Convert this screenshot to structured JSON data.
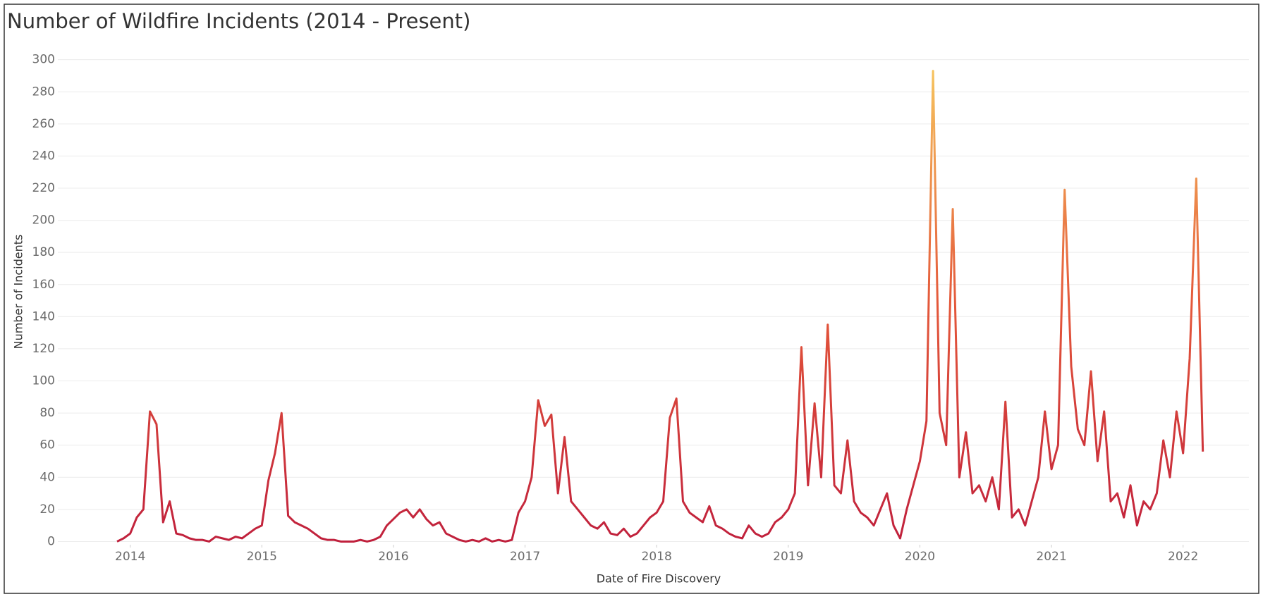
{
  "chart_data": {
    "type": "line",
    "title": "Number of Wildfire Incidents (2014 - Present)",
    "x_label": "Date of Fire Discovery",
    "y_label": "Number of Incidents",
    "x": [
      2013.9,
      2013.95,
      2014,
      2014.05,
      2014.1,
      2014.15,
      2014.2,
      2014.25,
      2014.3,
      2014.35,
      2014.4,
      2014.45,
      2014.5,
      2014.55,
      2014.6,
      2014.65,
      2014.7,
      2014.75,
      2014.8,
      2014.85,
      2014.9,
      2014.95,
      2015,
      2015.05,
      2015.1,
      2015.15,
      2015.2,
      2015.25,
      2015.3,
      2015.35,
      2015.4,
      2015.45,
      2015.5,
      2015.55,
      2015.6,
      2015.65,
      2015.7,
      2015.75,
      2015.8,
      2015.85,
      2015.9,
      2015.95,
      2016,
      2016.05,
      2016.1,
      2016.15,
      2016.2,
      2016.25,
      2016.3,
      2016.35,
      2016.4,
      2016.45,
      2016.5,
      2016.55,
      2016.6,
      2016.65,
      2016.7,
      2016.75,
      2016.8,
      2016.85,
      2016.9,
      2016.95,
      2017,
      2017.05,
      2017.1,
      2017.15,
      2017.2,
      2017.25,
      2017.3,
      2017.35,
      2017.4,
      2017.45,
      2017.5,
      2017.55,
      2017.6,
      2017.65,
      2017.7,
      2017.75,
      2017.8,
      2017.85,
      2017.9,
      2017.95,
      2018,
      2018.05,
      2018.1,
      2018.15,
      2018.2,
      2018.25,
      2018.3,
      2018.35,
      2018.4,
      2018.45,
      2018.5,
      2018.55,
      2018.6,
      2018.65,
      2018.7,
      2018.75,
      2018.8,
      2018.85,
      2018.9,
      2018.95,
      2019,
      2019.05,
      2019.1,
      2019.15,
      2019.2,
      2019.25,
      2019.3,
      2019.35,
      2019.4,
      2019.45,
      2019.5,
      2019.55,
      2019.6,
      2019.65,
      2019.7,
      2019.75,
      2019.8,
      2019.85,
      2019.9,
      2019.95,
      2020,
      2020.05,
      2020.1,
      2020.15,
      2020.2,
      2020.25,
      2020.3,
      2020.35,
      2020.4,
      2020.45,
      2020.5,
      2020.55,
      2020.6,
      2020.65,
      2020.7,
      2020.75,
      2020.8,
      2020.85,
      2020.9,
      2020.95,
      2021,
      2021.05,
      2021.1,
      2021.15,
      2021.2,
      2021.25,
      2021.3,
      2021.35,
      2021.4,
      2021.45,
      2021.5,
      2021.55,
      2021.6,
      2021.65,
      2021.7,
      2021.75,
      2021.8,
      2021.85,
      2021.9,
      2021.95,
      2022,
      2022.05,
      2022.1,
      2022.15
    ],
    "values": [
      0,
      2,
      5,
      15,
      20,
      81,
      73,
      12,
      25,
      5,
      4,
      2,
      1,
      1,
      0,
      3,
      2,
      1,
      3,
      2,
      5,
      8,
      10,
      38,
      55,
      80,
      16,
      12,
      10,
      8,
      5,
      2,
      1,
      1,
      0,
      0,
      0,
      1,
      0,
      1,
      3,
      10,
      14,
      18,
      20,
      15,
      20,
      14,
      10,
      12,
      5,
      3,
      1,
      0,
      1,
      0,
      2,
      0,
      1,
      0,
      1,
      18,
      25,
      40,
      88,
      72,
      79,
      30,
      65,
      25,
      20,
      15,
      10,
      8,
      12,
      5,
      4,
      8,
      3,
      5,
      10,
      15,
      18,
      25,
      77,
      89,
      25,
      18,
      15,
      12,
      22,
      10,
      8,
      5,
      3,
      2,
      10,
      5,
      3,
      5,
      12,
      15,
      20,
      30,
      121,
      35,
      86,
      40,
      135,
      35,
      30,
      63,
      25,
      18,
      15,
      10,
      20,
      30,
      10,
      2,
      20,
      35,
      50,
      75,
      293,
      80,
      60,
      207,
      40,
      68,
      30,
      35,
      25,
      40,
      20,
      87,
      15,
      20,
      10,
      25,
      40,
      81,
      45,
      60,
      219,
      109,
      70,
      60,
      106,
      50,
      81,
      25,
      30,
      15,
      35,
      10,
      25,
      20,
      30,
      63,
      40,
      81,
      55,
      114,
      226,
      56
    ],
    "xlim": [
      2013.45,
      2022.5
    ],
    "xticks": [
      2014,
      2015,
      2016,
      2017,
      2018,
      2019,
      2020,
      2021,
      2022
    ],
    "ylim": [
      -2,
      306
    ],
    "yticks": [
      0,
      20,
      40,
      60,
      80,
      100,
      120,
      140,
      160,
      180,
      200,
      220,
      240,
      260,
      280,
      300
    ],
    "grid": true,
    "colors": [
      "#c0203c",
      "#e4573a",
      "#f6c35e"
    ]
  }
}
